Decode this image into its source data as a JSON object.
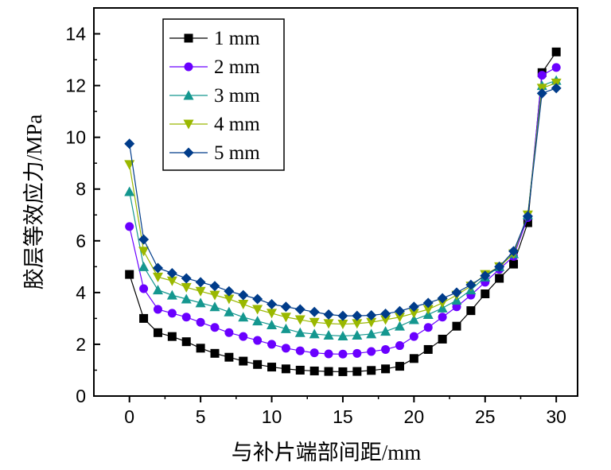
{
  "chart_data": {
    "type": "line",
    "xlabel": "与补片端部间距/mm",
    "ylabel": "胶层等效应力/MPa",
    "xlim": [
      -2.5,
      31.5
    ],
    "ylim": [
      0,
      15
    ],
    "x_ticks": [
      0,
      5,
      10,
      15,
      20,
      25,
      30
    ],
    "x_tick_labels": [
      "0",
      "5",
      "10",
      "15",
      "20",
      "25",
      "30"
    ],
    "y_ticks": [
      0,
      2,
      4,
      6,
      8,
      10,
      12,
      14
    ],
    "y_tick_labels": [
      "0",
      "2",
      "4",
      "6",
      "8",
      "10",
      "12",
      "14"
    ],
    "grid": false,
    "legend_position": "top-left",
    "x": [
      0,
      1,
      2,
      3,
      4,
      5,
      6,
      7,
      8,
      9,
      10,
      11,
      12,
      13,
      14,
      15,
      16,
      17,
      18,
      19,
      20,
      21,
      22,
      23,
      24,
      25,
      26,
      27,
      28,
      29,
      30
    ],
    "series": [
      {
        "name": "1 mm",
        "color": "#000000",
        "marker": "square",
        "values": [
          4.7,
          3.0,
          2.45,
          2.3,
          2.1,
          1.85,
          1.65,
          1.5,
          1.35,
          1.22,
          1.12,
          1.05,
          1.0,
          0.97,
          0.95,
          0.94,
          0.95,
          0.99,
          1.05,
          1.15,
          1.45,
          1.8,
          2.2,
          2.7,
          3.3,
          3.95,
          4.55,
          5.1,
          6.7,
          12.5,
          13.3
        ]
      },
      {
        "name": "2 mm",
        "color": "#6a00ff",
        "marker": "circle",
        "values": [
          6.55,
          4.15,
          3.35,
          3.2,
          3.05,
          2.85,
          2.65,
          2.45,
          2.3,
          2.15,
          2.0,
          1.85,
          1.75,
          1.67,
          1.63,
          1.62,
          1.65,
          1.72,
          1.8,
          1.95,
          2.3,
          2.65,
          3.05,
          3.45,
          3.9,
          4.4,
          4.9,
          5.4,
          6.9,
          12.4,
          12.7
        ]
      },
      {
        "name": "3 mm",
        "color": "#14978f",
        "marker": "triangle-up",
        "values": [
          7.9,
          5.0,
          4.1,
          3.9,
          3.75,
          3.6,
          3.45,
          3.25,
          3.05,
          2.9,
          2.75,
          2.6,
          2.45,
          2.4,
          2.35,
          2.32,
          2.35,
          2.4,
          2.5,
          2.7,
          2.95,
          3.15,
          3.4,
          3.7,
          4.1,
          4.6,
          5.0,
          5.5,
          7.0,
          12.0,
          12.2
        ]
      },
      {
        "name": "4 mm",
        "color": "#9ab800",
        "marker": "triangle-down",
        "values": [
          8.95,
          5.6,
          4.6,
          4.45,
          4.2,
          4.05,
          3.9,
          3.75,
          3.55,
          3.35,
          3.2,
          3.05,
          2.95,
          2.85,
          2.8,
          2.78,
          2.8,
          2.85,
          2.95,
          3.05,
          3.2,
          3.35,
          3.6,
          3.9,
          4.25,
          4.7,
          5.0,
          5.5,
          7.0,
          11.9,
          12.1
        ]
      },
      {
        "name": "5 mm",
        "color": "#003c8a",
        "marker": "diamond",
        "values": [
          9.75,
          6.05,
          4.95,
          4.75,
          4.55,
          4.4,
          4.25,
          4.05,
          3.9,
          3.75,
          3.55,
          3.45,
          3.35,
          3.25,
          3.15,
          3.1,
          3.1,
          3.12,
          3.18,
          3.28,
          3.45,
          3.6,
          3.78,
          4.0,
          4.3,
          4.65,
          5.0,
          5.6,
          6.95,
          11.7,
          11.9
        ]
      }
    ]
  }
}
